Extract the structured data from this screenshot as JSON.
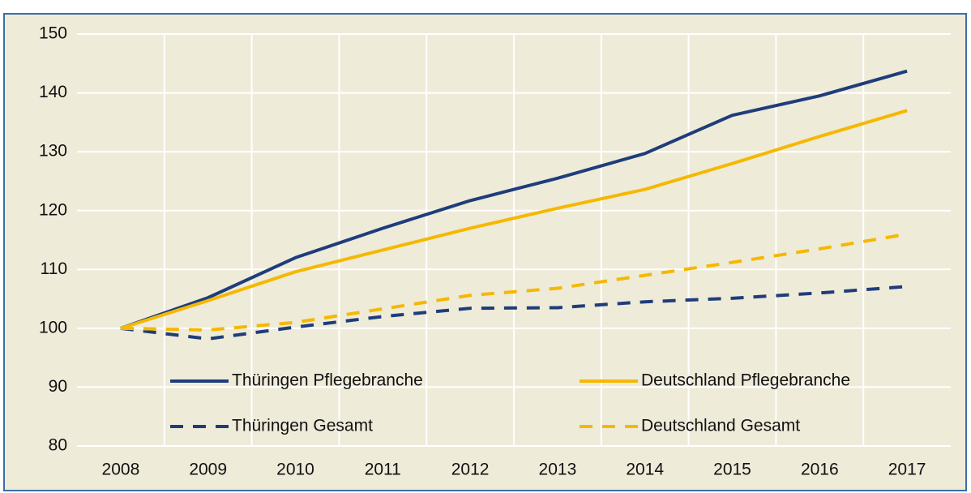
{
  "chart_data": {
    "type": "line",
    "categories": [
      "2008",
      "2009",
      "2010",
      "2011",
      "2012",
      "2013",
      "2014",
      "2015",
      "2016",
      "2017"
    ],
    "series": [
      {
        "name": "Thüringen Pflegebranche",
        "color": "#1f3d7a",
        "linestyle": "solid",
        "values": [
          100,
          105.2,
          112,
          117,
          121.7,
          125.5,
          129.7,
          136.2,
          139.5,
          143.7
        ]
      },
      {
        "name": "Deutschland Pflegebranche",
        "color": "#f5b800",
        "linestyle": "solid",
        "values": [
          100,
          104.7,
          109.6,
          113.3,
          117,
          120.4,
          123.6,
          128,
          132.6,
          137
        ]
      },
      {
        "name": "Thüringen Gesamt",
        "color": "#1f3d7a",
        "linestyle": "dashed",
        "values": [
          100,
          98.2,
          100.2,
          102,
          103.4,
          103.5,
          104.5,
          105.1,
          106,
          107.1
        ]
      },
      {
        "name": "Deutschland Gesamt",
        "color": "#f5b800",
        "linestyle": "dashed",
        "values": [
          100,
          99.7,
          101,
          103.3,
          105.6,
          106.8,
          109,
          111.2,
          113.5,
          116
        ]
      }
    ],
    "ylim": [
      80,
      150
    ],
    "yticks": [
      80,
      90,
      100,
      110,
      120,
      130,
      140,
      150
    ],
    "grid": true,
    "legend": "bottom"
  }
}
